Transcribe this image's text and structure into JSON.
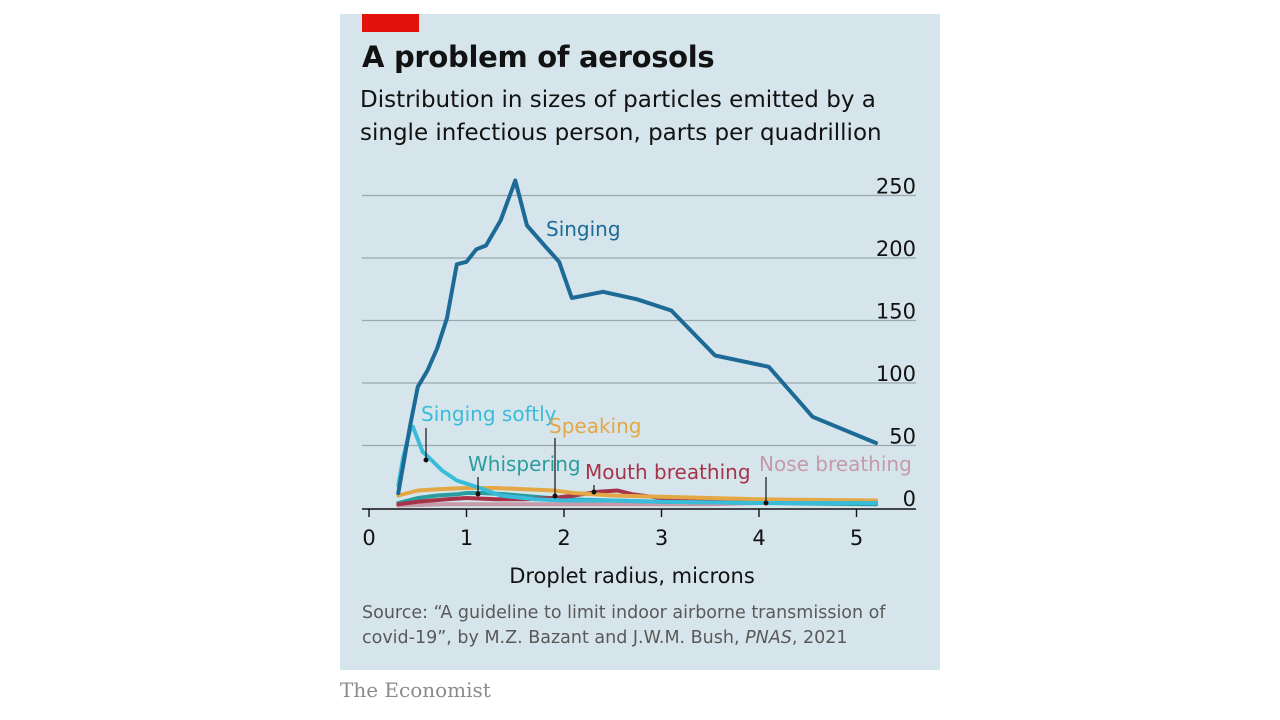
{
  "header": {
    "title": "A problem of aerosols",
    "subtitle": "Distribution in sizes of particles emitted by a single infectious person, parts per quadrillion"
  },
  "source": {
    "prefix": "Source: “A guideline to limit indoor airborne transmission of covid-19”, by M.Z. Bazant and J.W.M. Bush, ",
    "publication": "PNAS",
    "suffix": ", 2021"
  },
  "brand": "The Economist",
  "colors": {
    "panel": "#d6e5ec",
    "accent": "#e3120b",
    "grid": "#9aa8b0",
    "axis": "#121212"
  },
  "chart_data": {
    "type": "line",
    "xlabel": "Droplet radius, microns",
    "ylabel": "",
    "xlim": [
      0,
      5.5
    ],
    "ylim": [
      0,
      260
    ],
    "x_ticks": [
      0,
      1,
      2,
      3,
      4,
      5
    ],
    "y_ticks": [
      0,
      50,
      100,
      150,
      200,
      250
    ],
    "grid": true,
    "y_axis_side": "right",
    "series": [
      {
        "name": "Singing",
        "color": "#1d6a96",
        "x": [
          0.3,
          0.42,
          0.5,
          0.6,
          0.7,
          0.8,
          0.9,
          1.0,
          1.1,
          1.2,
          1.35,
          1.5,
          1.62,
          1.8,
          1.95,
          2.08,
          2.4,
          2.75,
          3.1,
          3.55,
          4.1,
          4.55,
          5.2
        ],
        "y": [
          12,
          65,
          97,
          110,
          128,
          152,
          195,
          197,
          207,
          210,
          230,
          262,
          226,
          210,
          197,
          168,
          173,
          167,
          158,
          122,
          113,
          73,
          52
        ]
      },
      {
        "name": "Singing softly",
        "color": "#39bcd9",
        "x": [
          0.3,
          0.35,
          0.42,
          0.45,
          0.5,
          0.55,
          0.62,
          0.75,
          0.9,
          1.1,
          1.35,
          1.7,
          2.0,
          2.5,
          3.0,
          4.0,
          5.2
        ],
        "y": [
          18,
          40,
          62,
          65,
          55,
          45,
          40,
          30,
          22,
          17,
          10,
          7,
          6,
          6,
          5,
          4,
          4
        ]
      },
      {
        "name": "Speaking",
        "color": "#e3a845",
        "x": [
          0.3,
          0.5,
          0.7,
          1.0,
          1.3,
          1.6,
          1.9,
          2.1,
          2.5,
          3.0,
          3.5,
          4.0,
          5.2
        ],
        "y": [
          10,
          14,
          15,
          16,
          16,
          15,
          14,
          12,
          10,
          9,
          8,
          7,
          6
        ]
      },
      {
        "name": "Whispering",
        "color": "#2a9d9f",
        "x": [
          0.3,
          0.5,
          0.7,
          0.9,
          1.0,
          1.15,
          1.4,
          1.7,
          2.0,
          2.5,
          3.0,
          4.0,
          5.2
        ],
        "y": [
          4,
          8,
          10,
          11,
          12,
          12,
          11,
          9,
          7,
          6,
          5,
          4,
          3
        ]
      },
      {
        "name": "Mouth breathing",
        "color": "#a63448",
        "x": [
          0.3,
          0.5,
          0.8,
          1.0,
          1.3,
          1.6,
          1.9,
          2.1,
          2.35,
          2.55,
          2.7,
          3.0,
          3.5,
          4.0,
          5.2
        ],
        "y": [
          3,
          5,
          7,
          8,
          7,
          7,
          8,
          10,
          13,
          14,
          11,
          8,
          6,
          5,
          5
        ]
      },
      {
        "name": "Nose breathing",
        "color": "#c49ba8",
        "x": [
          0.3,
          0.8,
          1.5,
          2.0,
          2.5,
          3.0,
          3.5,
          4.0,
          4.5,
          5.2
        ],
        "y": [
          2,
          3,
          3,
          3,
          3,
          3,
          3,
          4,
          4,
          4
        ]
      }
    ]
  }
}
